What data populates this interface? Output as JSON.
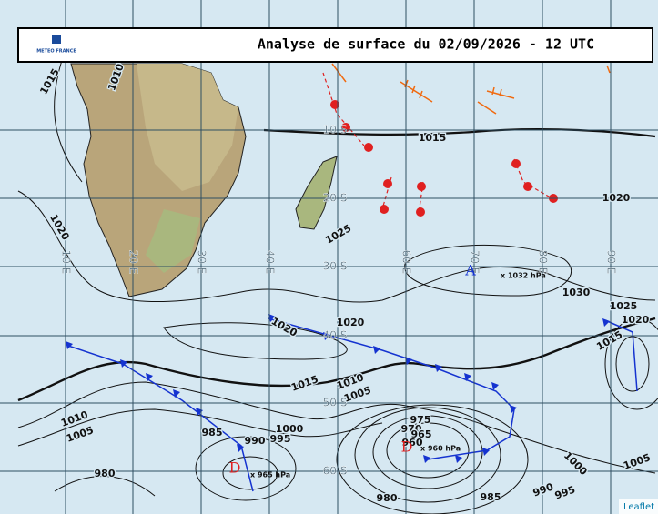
{
  "header": {
    "title": "Analyse de surface du 02/09/2026 - 12 UTC",
    "logo": "METEO FRANCE"
  },
  "latitude_labels": [
    "10 S",
    "20 S",
    "30 S",
    "40 S",
    "50 S",
    "60 S"
  ],
  "longitude_labels": [
    "10 E",
    "20 E",
    "30 E",
    "40 E",
    "60 E",
    "70 E",
    "80 E",
    "90 E"
  ],
  "isobar_labels": [
    "1015",
    "1010",
    "1015",
    "1020",
    "1025",
    "1020",
    "1030",
    "1025",
    "1020",
    "1020",
    "1020",
    "1015",
    "1010",
    "1005",
    "1015",
    "1010",
    "1005",
    "1000",
    "985",
    "990",
    "995",
    "975",
    "970",
    "965",
    "960",
    "1000",
    "1005",
    "980",
    "990",
    "995",
    "985",
    "980"
  ],
  "pressure_centers": [
    {
      "symbol": "A",
      "label": "x 1032 hPa"
    },
    {
      "symbol": "D",
      "label": "x 960 hPa"
    },
    {
      "symbol": "D",
      "label": "x 965 hPa"
    }
  ],
  "attribution": "Leaflet"
}
